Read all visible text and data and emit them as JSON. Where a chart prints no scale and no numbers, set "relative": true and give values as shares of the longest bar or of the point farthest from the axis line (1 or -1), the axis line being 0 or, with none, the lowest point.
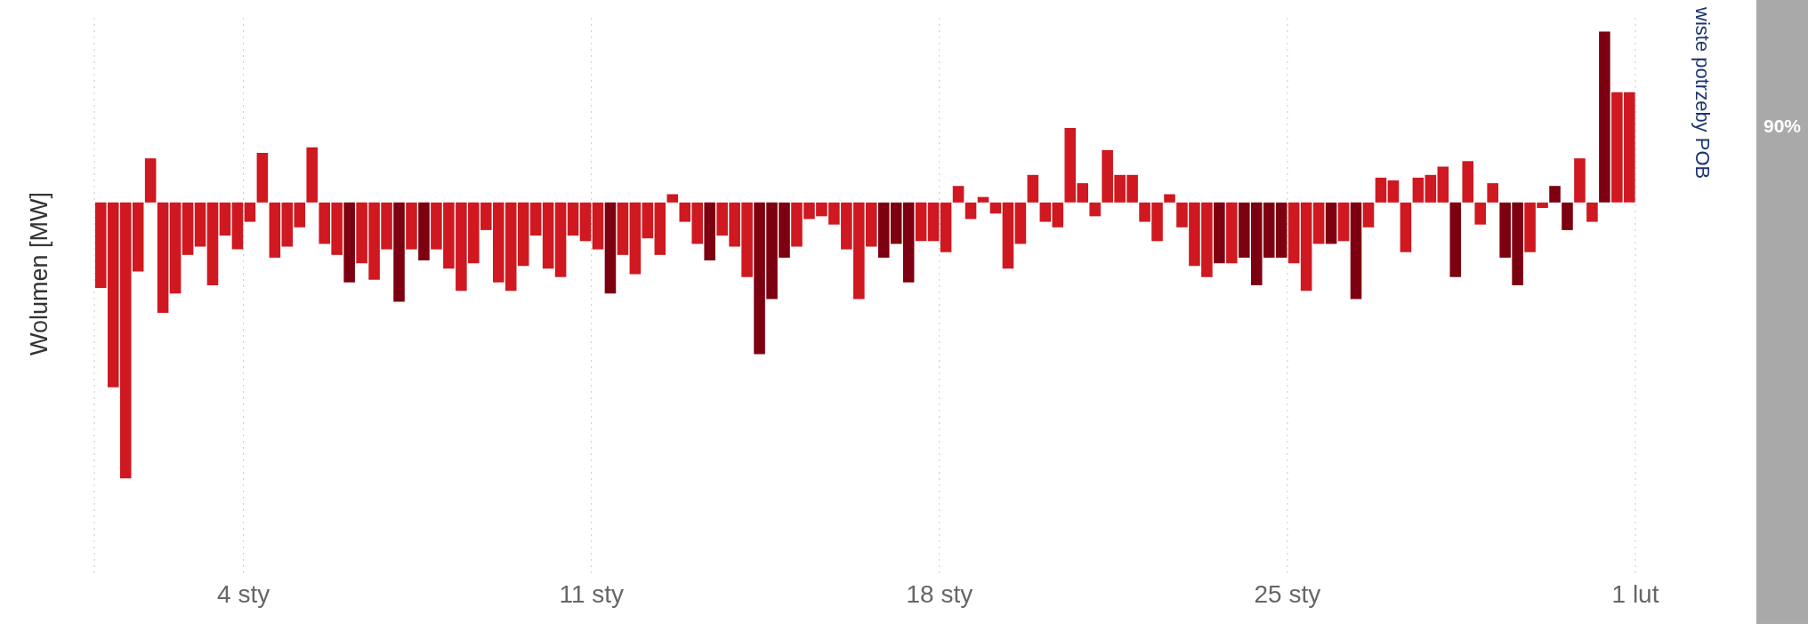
{
  "chart_data": {
    "type": "bar",
    "relative": true,
    "ylabel": "Wolumen [MW]",
    "annotations": [
      "wiste potrzeby POB",
      "90%"
    ],
    "grid": "x",
    "xlim": [
      "--01-01",
      "--02-01"
    ],
    "xticks": [
      {
        "value": "--01-04",
        "label": "4 sty"
      },
      {
        "value": "--01-11",
        "label": "11 sty"
      },
      {
        "value": "--01-18",
        "label": "18 sty"
      },
      {
        "value": "--01-25",
        "label": "25 sty"
      },
      {
        "value": "--02-01",
        "label": "1 lut"
      }
    ],
    "x": [
      "--01-01T03:00",
      "--01-01T09:00",
      "--01-01T15:00",
      "--01-01T21:00",
      "--01-02T03:00",
      "--01-02T09:00",
      "--01-02T15:00",
      "--01-02T21:00",
      "--01-03T03:00",
      "--01-03T09:00",
      "--01-03T15:00",
      "--01-03T21:00",
      "--01-04T03:00",
      "--01-04T09:00",
      "--01-04T15:00",
      "--01-04T21:00",
      "--01-05T03:00",
      "--01-05T09:00",
      "--01-05T15:00",
      "--01-05T21:00",
      "--01-06T03:00",
      "--01-06T09:00",
      "--01-06T15:00",
      "--01-06T21:00",
      "--01-07T03:00",
      "--01-07T09:00",
      "--01-07T15:00",
      "--01-07T21:00",
      "--01-08T03:00",
      "--01-08T09:00",
      "--01-08T15:00",
      "--01-08T21:00",
      "--01-09T03:00",
      "--01-09T09:00",
      "--01-09T15:00",
      "--01-09T21:00",
      "--01-10T03:00",
      "--01-10T09:00",
      "--01-10T15:00",
      "--01-10T21:00",
      "--01-11T03:00",
      "--01-11T09:00",
      "--01-11T15:00",
      "--01-11T21:00",
      "--01-12T03:00",
      "--01-12T09:00",
      "--01-12T15:00",
      "--01-12T21:00",
      "--01-13T03:00",
      "--01-13T09:00",
      "--01-13T15:00",
      "--01-13T21:00",
      "--01-14T03:00",
      "--01-14T09:00",
      "--01-14T15:00",
      "--01-14T21:00",
      "--01-15T03:00",
      "--01-15T09:00",
      "--01-15T15:00",
      "--01-15T21:00",
      "--01-16T03:00",
      "--01-16T09:00",
      "--01-16T15:00",
      "--01-16T21:00",
      "--01-17T03:00",
      "--01-17T09:00",
      "--01-17T15:00",
      "--01-17T21:00",
      "--01-18T03:00",
      "--01-18T09:00",
      "--01-18T15:00",
      "--01-18T21:00",
      "--01-19T03:00",
      "--01-19T09:00",
      "--01-19T15:00",
      "--01-19T21:00",
      "--01-20T03:00",
      "--01-20T09:00",
      "--01-20T15:00",
      "--01-20T21:00",
      "--01-21T03:00",
      "--01-21T09:00",
      "--01-21T15:00",
      "--01-21T21:00",
      "--01-22T03:00",
      "--01-22T09:00",
      "--01-22T15:00",
      "--01-22T21:00",
      "--01-23T03:00",
      "--01-23T09:00",
      "--01-23T15:00",
      "--01-23T21:00",
      "--01-24T03:00",
      "--01-24T09:00",
      "--01-24T15:00",
      "--01-24T21:00",
      "--01-25T03:00",
      "--01-25T09:00",
      "--01-25T15:00",
      "--01-25T21:00",
      "--01-26T03:00",
      "--01-26T09:00",
      "--01-26T15:00",
      "--01-26T21:00",
      "--01-27T03:00",
      "--01-27T09:00",
      "--01-27T15:00",
      "--01-27T21:00",
      "--01-28T03:00",
      "--01-28T09:00",
      "--01-28T15:00",
      "--01-28T21:00",
      "--01-29T03:00",
      "--01-29T09:00",
      "--01-29T15:00",
      "--01-29T21:00",
      "--01-30T03:00",
      "--01-30T09:00",
      "--01-30T15:00",
      "--01-30T21:00",
      "--01-31T03:00",
      "--01-31T09:00",
      "--01-31T15:00",
      "--01-31T21:00"
    ],
    "values": [
      -0.31,
      -0.67,
      -1.0,
      -0.25,
      0.16,
      -0.4,
      -0.33,
      -0.19,
      -0.16,
      -0.3,
      -0.12,
      -0.17,
      -0.07,
      0.18,
      -0.2,
      -0.16,
      -0.09,
      0.2,
      -0.15,
      -0.19,
      -0.29,
      -0.22,
      -0.28,
      -0.17,
      -0.36,
      -0.17,
      -0.21,
      -0.17,
      -0.24,
      -0.32,
      -0.22,
      -0.1,
      -0.29,
      -0.32,
      -0.23,
      -0.12,
      -0.24,
      -0.27,
      -0.12,
      -0.14,
      -0.17,
      -0.33,
      -0.19,
      -0.26,
      -0.13,
      -0.19,
      0.03,
      -0.07,
      -0.15,
      -0.21,
      -0.12,
      -0.16,
      -0.27,
      -0.55,
      -0.35,
      -0.2,
      -0.16,
      -0.06,
      -0.05,
      -0.08,
      -0.17,
      -0.35,
      -0.16,
      -0.2,
      -0.15,
      -0.29,
      -0.14,
      -0.14,
      -0.18,
      0.06,
      -0.06,
      0.02,
      -0.04,
      -0.24,
      -0.15,
      0.1,
      -0.07,
      -0.09,
      0.27,
      0.07,
      -0.05,
      0.19,
      0.1,
      0.1,
      -0.07,
      -0.14,
      0.03,
      -0.09,
      -0.23,
      -0.27,
      -0.22,
      -0.22,
      -0.2,
      -0.3,
      -0.2,
      -0.2,
      -0.22,
      -0.32,
      -0.15,
      -0.15,
      -0.14,
      -0.35,
      -0.09,
      0.09,
      0.08,
      -0.18,
      0.09,
      0.1,
      0.13,
      -0.27,
      0.15,
      -0.08,
      0.07,
      -0.2,
      -0.3,
      -0.18,
      -0.02,
      0.06,
      -0.1,
      0.16,
      -0.07,
      0.62,
      0.4,
      0.4
    ],
    "colors": [
      "#cf1820",
      "#cf1820",
      "#cf1820",
      "#cf1820",
      "#cf1820",
      "#cf1820",
      "#cf1820",
      "#cf1820",
      "#cf1820",
      "#cf1820",
      "#cf1820",
      "#cf1820",
      "#cf1820",
      "#cf1820",
      "#cf1820",
      "#cf1820",
      "#cf1820",
      "#cf1820",
      "#cf1820",
      "#cf1820",
      "#7d0010",
      "#cf1820",
      "#cf1820",
      "#cf1820",
      "#7d0010",
      "#cf1820",
      "#7d0010",
      "#cf1820",
      "#cf1820",
      "#cf1820",
      "#cf1820",
      "#cf1820",
      "#cf1820",
      "#cf1820",
      "#cf1820",
      "#cf1820",
      "#cf1820",
      "#cf1820",
      "#cf1820",
      "#cf1820",
      "#cf1820",
      "#7d0010",
      "#cf1820",
      "#cf1820",
      "#cf1820",
      "#cf1820",
      "#cf1820",
      "#cf1820",
      "#cf1820",
      "#7d0010",
      "#cf1820",
      "#cf1820",
      "#cf1820",
      "#7d0010",
      "#7d0010",
      "#7d0010",
      "#cf1820",
      "#cf1820",
      "#cf1820",
      "#cf1820",
      "#cf1820",
      "#cf1820",
      "#cf1820",
      "#7d0010",
      "#7d0010",
      "#7d0010",
      "#cf1820",
      "#cf1820",
      "#cf1820",
      "#cf1820",
      "#cf1820",
      "#cf1820",
      "#cf1820",
      "#cf1820",
      "#cf1820",
      "#cf1820",
      "#cf1820",
      "#cf1820",
      "#cf1820",
      "#cf1820",
      "#cf1820",
      "#cf1820",
      "#cf1820",
      "#cf1820",
      "#cf1820",
      "#cf1820",
      "#cf1820",
      "#cf1820",
      "#cf1820",
      "#cf1820",
      "#7d0010",
      "#cf1820",
      "#7d0010",
      "#7d0010",
      "#7d0010",
      "#7d0010",
      "#cf1820",
      "#cf1820",
      "#cf1820",
      "#7d0010",
      "#cf1820",
      "#7d0010",
      "#cf1820",
      "#cf1820",
      "#cf1820",
      "#cf1820",
      "#cf1820",
      "#cf1820",
      "#cf1820",
      "#7d0010",
      "#cf1820",
      "#cf1820",
      "#cf1820",
      "#7d0010",
      "#7d0010",
      "#cf1820",
      "#cf1820",
      "#7d0010",
      "#7d0010",
      "#cf1820",
      "#cf1820",
      "#7d0010",
      "#cf1820",
      "#cf1820"
    ]
  }
}
